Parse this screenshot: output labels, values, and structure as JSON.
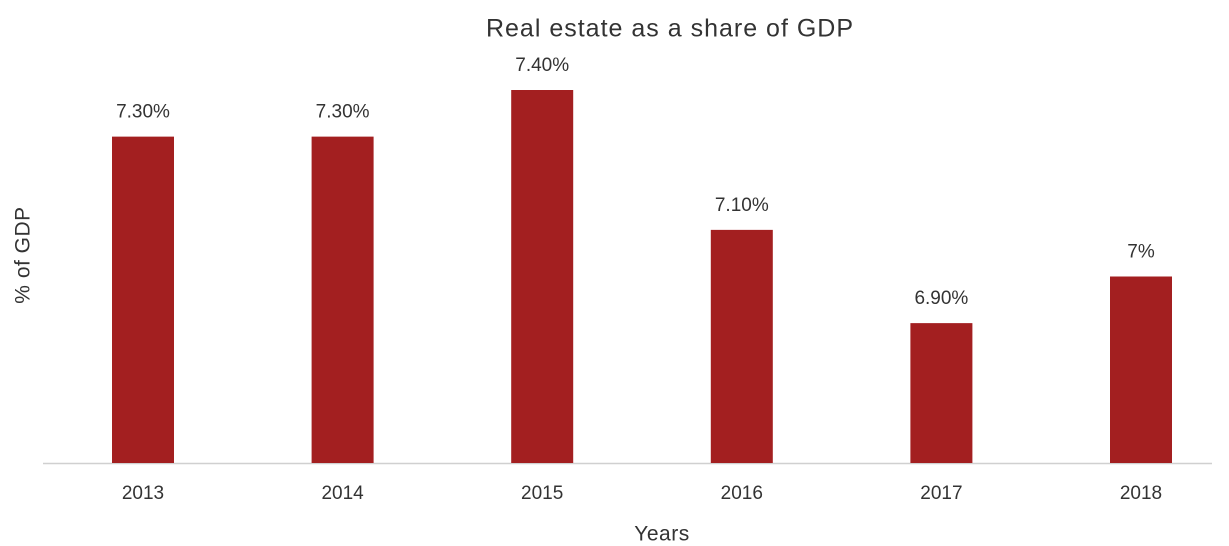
{
  "chart_data": {
    "type": "bar",
    "title": "Real estate as a share of GDP",
    "x_label": "Years",
    "y_label": "% of GDP",
    "categories": [
      "2013",
      "2014",
      "2015",
      "2016",
      "2017",
      "2018"
    ],
    "values": [
      7.3,
      7.3,
      7.4,
      7.1,
      6.9,
      7.0
    ],
    "value_labels": [
      "7.30%",
      "7.30%",
      "7.40%",
      "7.10%",
      "6.90%",
      "7%"
    ],
    "color": "#a31f20",
    "ylim": [
      6.6,
      7.4
    ]
  }
}
